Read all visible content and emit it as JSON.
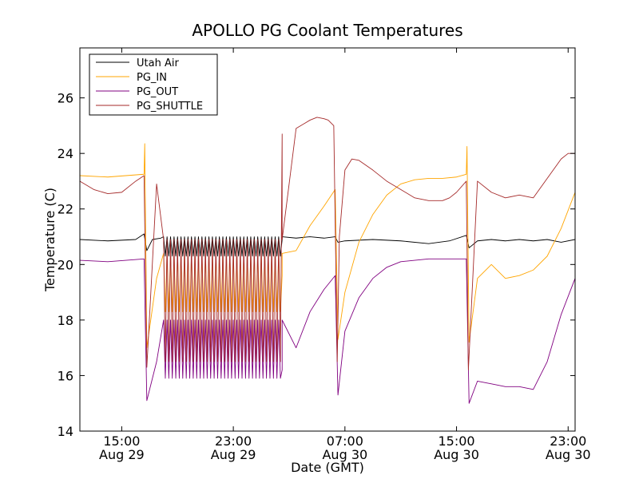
{
  "chart_data": {
    "type": "line",
    "title": "APOLLO PG Coolant Temperatures",
    "xlabel": "Date (GMT)",
    "ylabel": "Temperature (C)",
    "x_unit": "hours since Aug 29 00:00 GMT",
    "xlim": [
      12,
      47.5
    ],
    "ylim": [
      14,
      27.8
    ],
    "grid": false,
    "legend_position": "top-left",
    "x_ticks": [
      {
        "value": 15,
        "line1": "15:00",
        "line2": "Aug 29"
      },
      {
        "value": 23,
        "line1": "23:00",
        "line2": "Aug 29"
      },
      {
        "value": 31,
        "line1": "07:00",
        "line2": "Aug 30"
      },
      {
        "value": 39,
        "line1": "15:00",
        "line2": "Aug 30"
      },
      {
        "value": 47,
        "line1": "23:00",
        "line2": "Aug 30"
      }
    ],
    "y_ticks": [
      "14",
      "16",
      "18",
      "20",
      "22",
      "24",
      "26"
    ],
    "series": [
      {
        "name": "Utah Air",
        "color": "#000000",
        "x": [
          12,
          14,
          16,
          16.6,
          16.8,
          17.2,
          17.8,
          18.5,
          19.5,
          20.5,
          21.5,
          22.5,
          23.5,
          24.5,
          25.5,
          26.5,
          27.5,
          28.5,
          29.5,
          30.3,
          30.5,
          31,
          33,
          35,
          37,
          38.5,
          39.7,
          39.9,
          40.5,
          41.5,
          42.5,
          43.5,
          44.5,
          45.5,
          46.5,
          47.5
        ],
        "y": [
          20.9,
          20.85,
          20.9,
          21.1,
          20.5,
          20.9,
          20.95,
          20.9,
          20.85,
          20.9,
          20.95,
          20.9,
          20.9,
          20.85,
          20.95,
          20.9,
          20.95,
          21.0,
          20.95,
          21.0,
          20.8,
          20.85,
          20.9,
          20.85,
          20.75,
          20.85,
          21.05,
          20.6,
          20.85,
          20.9,
          20.85,
          20.9,
          20.85,
          20.9,
          20.8,
          20.9
        ],
        "band": {
          "from": 18,
          "to": 26.5,
          "period": 0.25,
          "low": 20.3,
          "high": 21.0
        }
      },
      {
        "name": "PG_IN",
        "color": "#ffa500",
        "x": [
          12,
          14,
          16.6,
          16.65,
          16.8,
          17.5,
          18.5,
          19.5,
          20.5,
          21.5,
          22.5,
          23.5,
          24.5,
          25.5,
          26.5,
          27.5,
          28.5,
          29.5,
          30.3,
          30.5,
          31,
          32,
          33,
          34,
          35,
          36,
          37,
          38,
          39,
          39.7,
          39.75,
          39.9,
          40.5,
          41.5,
          42.5,
          43.5,
          44.5,
          45.5,
          46.5,
          47.5
        ],
        "y": [
          23.2,
          23.15,
          23.25,
          24.35,
          17.0,
          19.5,
          19.8,
          19.7,
          19.6,
          19.5,
          19.4,
          19.3,
          19.2,
          19.4,
          19.6,
          20.5,
          21.4,
          22.1,
          22.7,
          17.3,
          19.0,
          20.8,
          21.8,
          22.5,
          22.9,
          23.05,
          23.1,
          23.1,
          23.15,
          23.25,
          24.25,
          17.2,
          19.5,
          20.0,
          19.5,
          19.6,
          19.8,
          20.3,
          21.3,
          22.6
        ],
        "band": {
          "from": 18,
          "to": 26.5,
          "period": 0.25,
          "low": 18.3,
          "high": 20.4
        }
      },
      {
        "name": "PG_OUT",
        "color": "#800080",
        "x": [
          12,
          14,
          16.6,
          16.8,
          17.5,
          18.5,
          19.5,
          20.5,
          21.5,
          22.5,
          23.5,
          24.5,
          25.5,
          26.5,
          27.5,
          28.5,
          29.5,
          30.3,
          30.5,
          31,
          32,
          33,
          34,
          35,
          36,
          37,
          38,
          39,
          39.7,
          39.9,
          40.5,
          41.5,
          42.5,
          43.5,
          44.5,
          45.5,
          46.5,
          47.5
        ],
        "y": [
          20.15,
          20.1,
          20.2,
          15.1,
          16.5,
          16.2,
          16.1,
          16.1,
          16.2,
          16.3,
          16.4,
          16.5,
          16.3,
          16.2,
          17.0,
          18.3,
          19.1,
          19.6,
          15.3,
          17.6,
          18.8,
          19.5,
          19.9,
          20.1,
          20.15,
          20.2,
          20.2,
          20.2,
          20.2,
          15.0,
          15.8,
          15.7,
          15.6,
          15.6,
          15.5,
          16.5,
          18.2,
          19.5
        ],
        "band": {
          "from": 18,
          "to": 26.5,
          "period": 0.25,
          "low": 15.9,
          "high": 18.0
        }
      },
      {
        "name": "PG_SHUTTLE",
        "color": "#a52a2a",
        "x": [
          12,
          13,
          14,
          15,
          16,
          16.6,
          16.8,
          17.5,
          18.5,
          19.5,
          20.5,
          21.5,
          22.5,
          23.5,
          24.5,
          25.5,
          26.5,
          27.5,
          28.5,
          29,
          29.5,
          29.8,
          30.2,
          30.45,
          30.6,
          31,
          31.5,
          32,
          33,
          34,
          35,
          36,
          37,
          38,
          38.5,
          39,
          39.7,
          39.85,
          40.5,
          41.5,
          42.5,
          43.5,
          44.5,
          45.5,
          46.5,
          47,
          47.5
        ],
        "y": [
          23.0,
          22.7,
          22.55,
          22.6,
          23.0,
          23.2,
          16.3,
          22.9,
          21.8,
          21.8,
          21.0,
          21.0,
          21.2,
          21.5,
          22.2,
          23.6,
          24.7,
          24.9,
          25.2,
          25.3,
          25.25,
          25.2,
          25.0,
          16.5,
          21.0,
          23.4,
          23.8,
          23.75,
          23.4,
          23.0,
          22.7,
          22.4,
          22.3,
          22.3,
          22.4,
          22.6,
          23.0,
          16.2,
          23.0,
          22.6,
          22.4,
          22.5,
          22.4,
          23.1,
          23.8,
          24.0,
          24.0
        ],
        "band": {
          "from": 18,
          "to": 26.5,
          "period": 0.25,
          "low": 16.5,
          "high": 20.9
        }
      }
    ]
  }
}
